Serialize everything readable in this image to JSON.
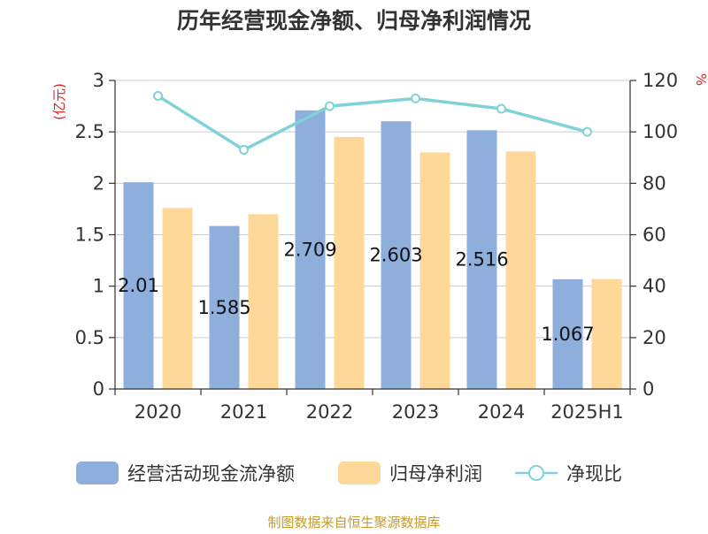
{
  "chart_data": {
    "type": "bar",
    "title": "历年经营现金净额、归母净利润情况",
    "left_unit": "(亿元)",
    "right_unit": "%",
    "categories": [
      "2020",
      "2021",
      "2022",
      "2023",
      "2024",
      "2025H1"
    ],
    "series": [
      {
        "name": "经营活动现金流净额",
        "type": "bar",
        "axis": "left",
        "color": "#8eaedb",
        "values": [
          2.01,
          1.585,
          2.709,
          2.603,
          2.516,
          1.067
        ],
        "labels": [
          "2.01",
          "1.585",
          "2.709",
          "2.603",
          "2.516",
          "1.067"
        ]
      },
      {
        "name": "归母净利润",
        "type": "bar",
        "axis": "left",
        "color": "#fdd898",
        "values": [
          1.76,
          1.7,
          2.45,
          2.3,
          2.31,
          1.07
        ]
      },
      {
        "name": "净现比",
        "type": "line",
        "axis": "right",
        "color": "#7fd3d8",
        "values": [
          114,
          93,
          110,
          113,
          109,
          100
        ]
      }
    ],
    "left_axis": {
      "min": 0,
      "max": 3,
      "ticks": [
        "0",
        "0.5",
        "1",
        "1.5",
        "2",
        "2.5",
        "3"
      ]
    },
    "right_axis": {
      "min": 0,
      "max": 120,
      "ticks": [
        "0",
        "20",
        "40",
        "60",
        "80",
        "100",
        "120"
      ]
    },
    "grid": true,
    "legend": "bottom"
  },
  "source": "制图数据来自恒生聚源数据库"
}
